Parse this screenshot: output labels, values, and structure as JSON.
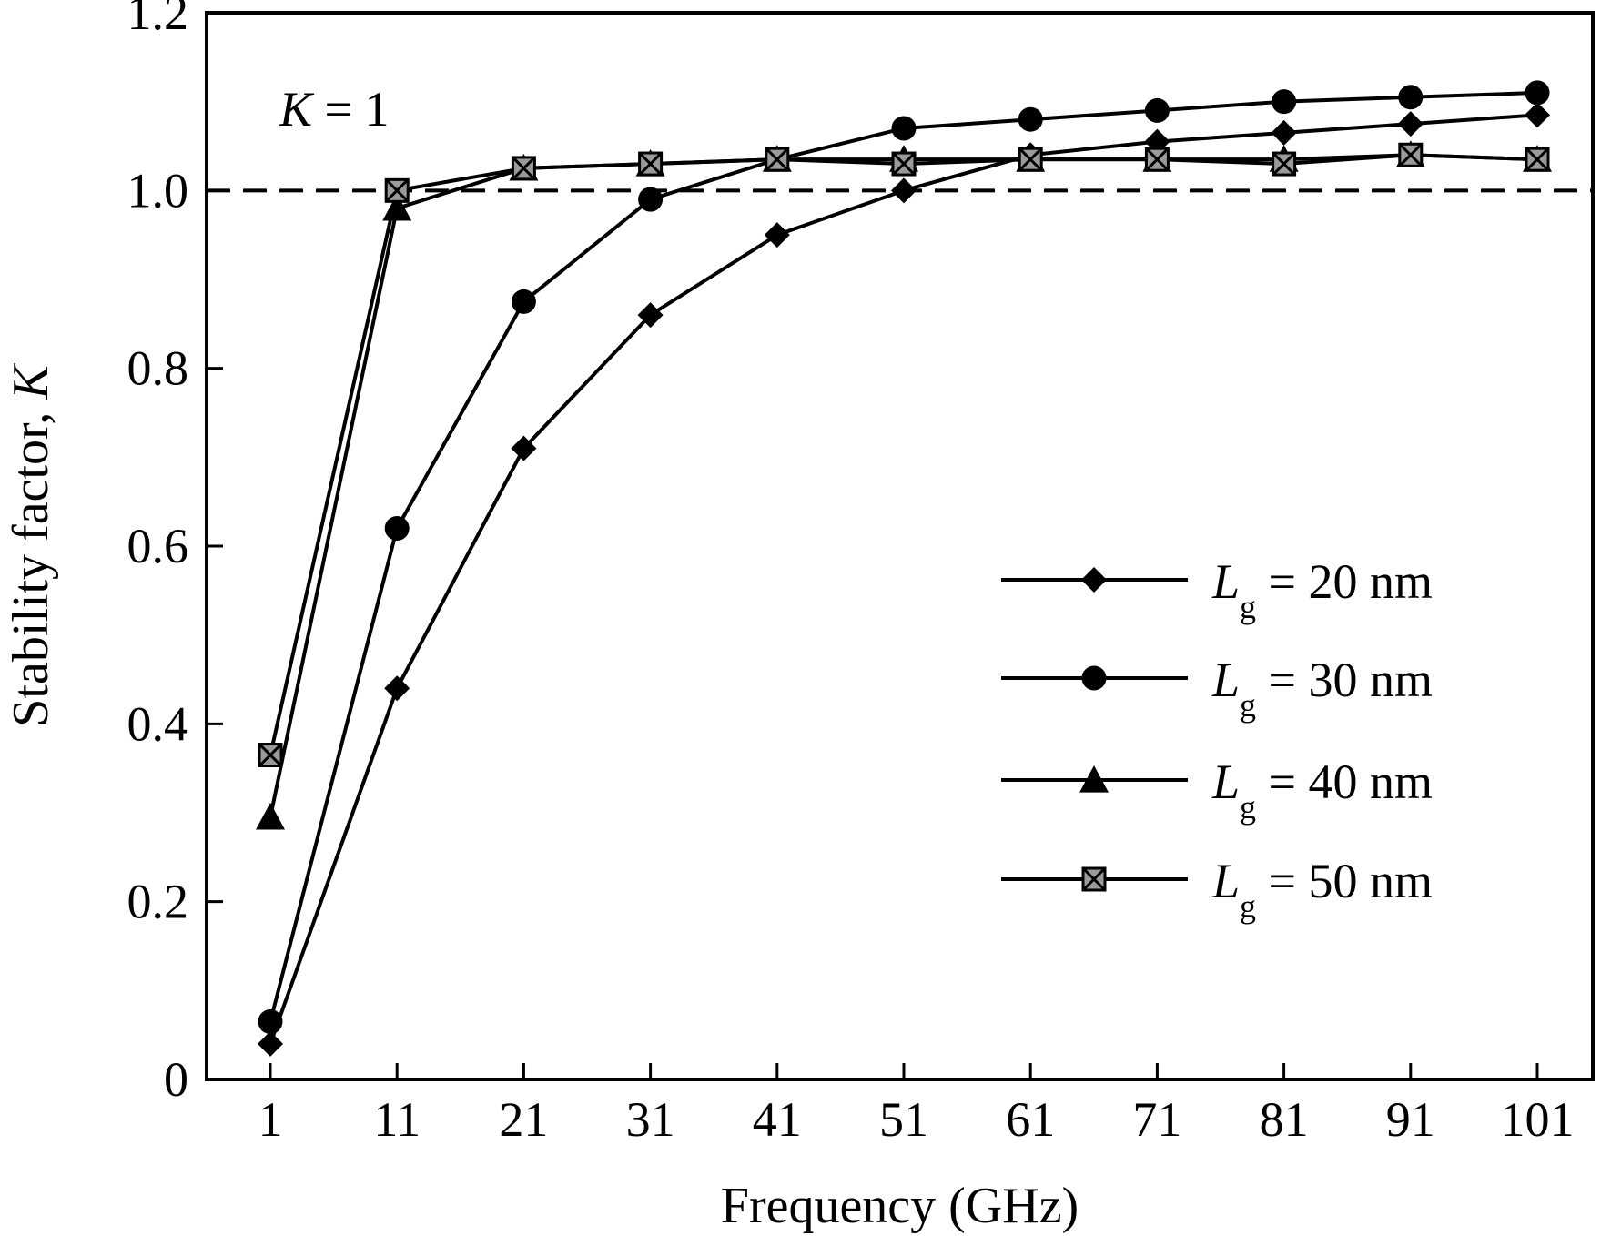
{
  "chart_data": {
    "type": "line",
    "xlabel": "Frequency (GHz)",
    "ylabel_text": "Stability factor, ",
    "ylabel_var": "K",
    "x": [
      1,
      11,
      21,
      31,
      41,
      51,
      61,
      71,
      81,
      91,
      101
    ],
    "xticks": [
      "1",
      "11",
      "21",
      "31",
      "41",
      "51",
      "61",
      "71",
      "81",
      "91",
      "101"
    ],
    "yticks": [
      "0",
      "0.2",
      "0.4",
      "0.6",
      "0.8",
      "1.0",
      "1.2"
    ],
    "ylim": [
      0,
      1.2
    ],
    "reference_line": {
      "y": 1.0,
      "style": "dashed"
    },
    "annotation": {
      "var": "K",
      "text": " = 1"
    },
    "legend_position": "right",
    "series": [
      {
        "name_var": "L",
        "name_sub": "g",
        "name_text": " = 20 nm",
        "marker": "diamond",
        "values": [
          0.04,
          0.44,
          0.71,
          0.86,
          0.95,
          1.0,
          1.04,
          1.055,
          1.065,
          1.075,
          1.085
        ]
      },
      {
        "name_var": "L",
        "name_sub": "g",
        "name_text": " = 30 nm",
        "marker": "circle",
        "values": [
          0.065,
          0.62,
          0.875,
          0.99,
          1.035,
          1.07,
          1.08,
          1.09,
          1.1,
          1.105,
          1.11
        ]
      },
      {
        "name_var": "L",
        "name_sub": "g",
        "name_text": " = 40 nm",
        "marker": "triangle",
        "values": [
          0.295,
          0.98,
          1.025,
          1.03,
          1.035,
          1.035,
          1.035,
          1.035,
          1.035,
          1.04,
          1.035
        ]
      },
      {
        "name_var": "L",
        "name_sub": "g",
        "name_text": " = 50 nm",
        "marker": "square-x",
        "values": [
          0.365,
          1.0,
          1.025,
          1.03,
          1.035,
          1.03,
          1.035,
          1.035,
          1.03,
          1.04,
          1.035
        ]
      }
    ]
  }
}
